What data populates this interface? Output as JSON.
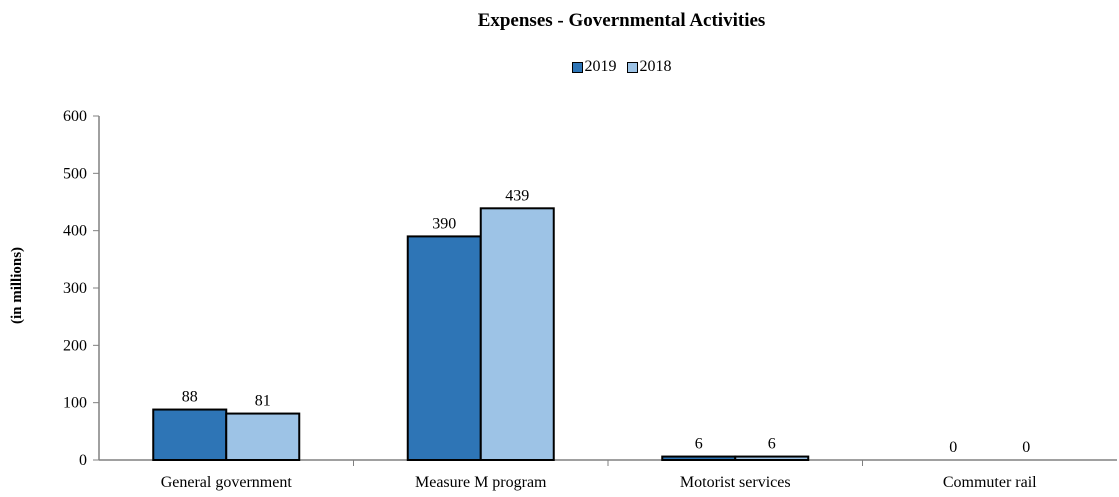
{
  "chart_data": {
    "type": "bar",
    "title": "Expenses - Governmental Activities",
    "ylabel": "(in millions)",
    "xlabel": "",
    "categories": [
      "General government",
      "Measure M program",
      "Motorist services",
      "Commuter rail"
    ],
    "series": [
      {
        "name": "2019",
        "values": [
          88,
          390,
          6,
          0
        ],
        "color": "#2e75b6"
      },
      {
        "name": "2018",
        "values": [
          81,
          439,
          6,
          0
        ],
        "color": "#9dc3e6"
      }
    ],
    "ylim": [
      0,
      600
    ],
    "yticks": [
      "0",
      "100",
      "200",
      "300",
      "400",
      "500",
      "600"
    ],
    "data_labels": [
      [
        "88",
        "390",
        "6",
        "0"
      ],
      [
        "81",
        "439",
        "6",
        "0"
      ]
    ],
    "legend_position": "top-center",
    "grid": false
  }
}
